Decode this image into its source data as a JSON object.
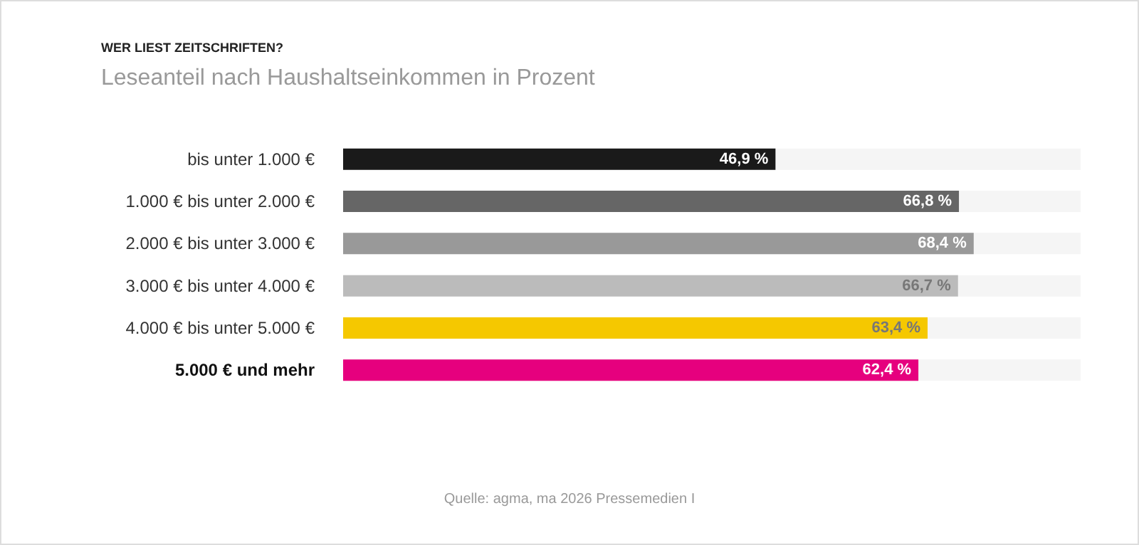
{
  "chart_data": {
    "type": "bar",
    "orientation": "horizontal",
    "title": "WER LIEST ZEITSCHRIFTEN?",
    "subtitle": "Leseanteil nach Haushaltseinkommen in Prozent",
    "categories": [
      "bis unter 1.000 €",
      "1.000 € bis unter 2.000 €",
      "2.000 € bis unter 3.000 €",
      "3.000 € bis unter 4.000 €",
      "4.000 € bis unter 5.000 €",
      "5.000 € und mehr"
    ],
    "values": [
      46.9,
      66.8,
      68.4,
      66.7,
      63.4,
      62.4
    ],
    "value_labels": [
      "46,9 %",
      "66,8 %",
      "68,4 %",
      "66,7 %",
      "63,4 %",
      "62,4 %"
    ],
    "colors": [
      "#1a1a1a",
      "#666666",
      "#999999",
      "#bbbbbb",
      "#f5c800",
      "#e6007e"
    ],
    "xlim": [
      0,
      80
    ],
    "tick_labels": "y",
    "annotations": [
      "Quelle: agma, ma 2026 Pressemedien I"
    ]
  }
}
